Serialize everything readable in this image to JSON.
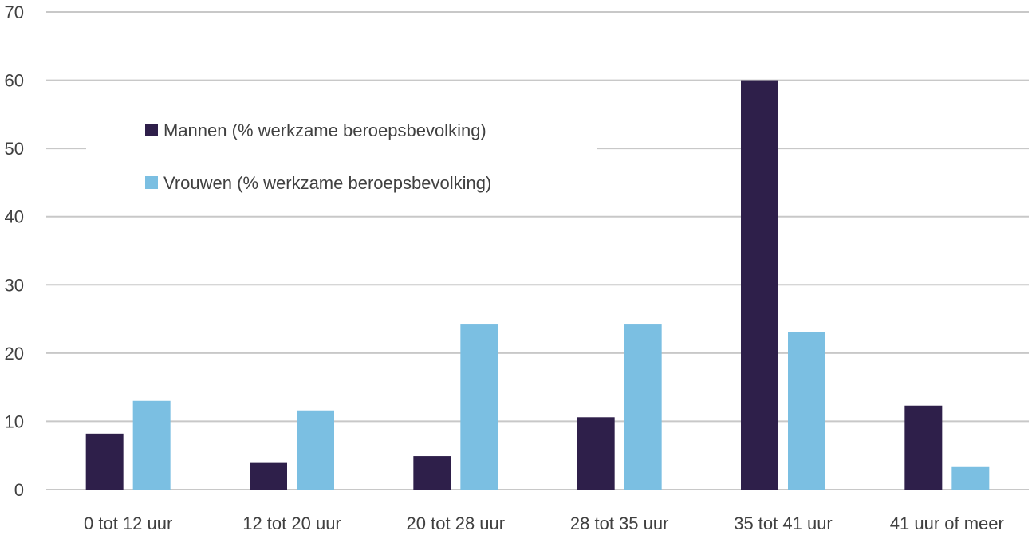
{
  "chart_data": {
    "type": "bar",
    "categories": [
      "0 tot 12 uur",
      "12 tot 20 uur",
      "20 tot 28 uur",
      "28 tot 35 uur",
      "35 tot 41 uur",
      "41 uur of meer"
    ],
    "series": [
      {
        "name": "Mannen (% werkzame beroepsbevolking)",
        "color": "#2e1f4a",
        "values": [
          8.2,
          3.9,
          4.9,
          10.6,
          60.0,
          12.3
        ]
      },
      {
        "name": "Vrouwen (% werkzame beroepsbevolking)",
        "color": "#7bbfe2",
        "values": [
          13.0,
          11.6,
          24.3,
          24.3,
          23.1,
          3.3
        ]
      }
    ],
    "yticks": [
      "0",
      "10",
      "20",
      "30",
      "40",
      "50",
      "60",
      "70"
    ],
    "ylim": [
      0,
      70
    ],
    "grid": true,
    "legend_position": "top-left"
  }
}
